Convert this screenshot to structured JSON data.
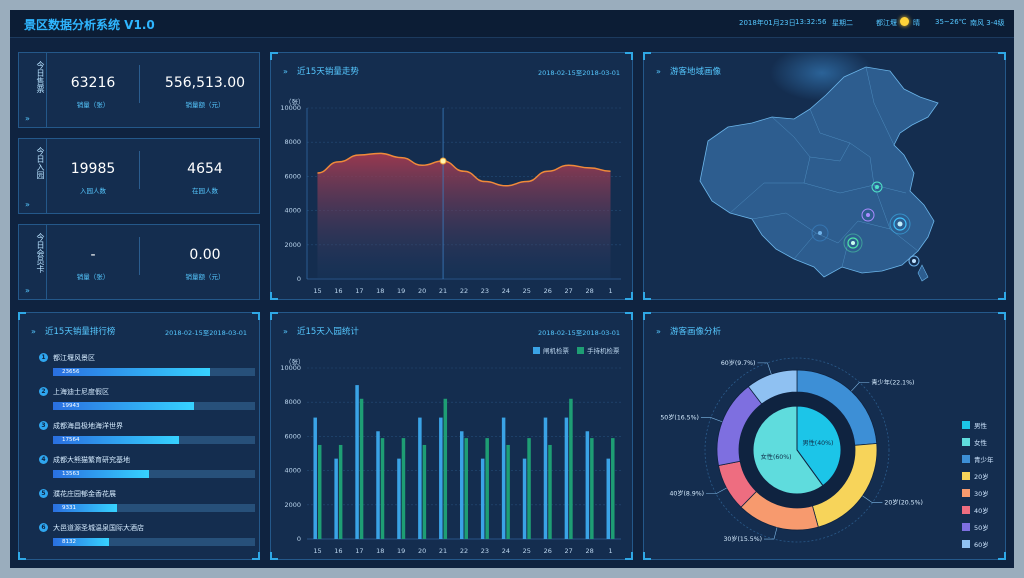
{
  "header": {
    "title": "景区数据分析系统  V1.0",
    "date": "2018年01月23日",
    "time": "13:32:56",
    "weekday": "星期二",
    "city": "都江堰",
    "weather": "晴",
    "temp": "35~26℃",
    "wind": "南风 3-4级"
  },
  "stats": [
    {
      "tab": "今日售票",
      "left_value": "63216",
      "left_label": "销量（张）",
      "right_value": "556,513.00",
      "right_label": "销量额（元）"
    },
    {
      "tab": "今日入园",
      "left_value": "19985",
      "left_label": "入园人数",
      "right_value": "4654",
      "right_label": "在园人数"
    },
    {
      "tab": "今日会员卡",
      "left_value": "-",
      "left_label": "销量（张）",
      "right_value": "0.00",
      "right_label": "销量额（元）"
    }
  ],
  "sales_trend": {
    "title": "近15天销量走势",
    "date_range": "2018-02-15至2018-03-01"
  },
  "region_map": {
    "title": "游客地域画像"
  },
  "ranking": {
    "title": "近15天销量排行榜",
    "date_range": "2018-02-15至2018-03-01",
    "items": [
      {
        "rank": "1",
        "name": "都江堰风景区",
        "value": "23656"
      },
      {
        "rank": "2",
        "name": "上海迪士尼度假区",
        "value": "19943"
      },
      {
        "rank": "3",
        "name": "成都海昌极地海洋世界",
        "value": "17564"
      },
      {
        "rank": "4",
        "name": "成都大熊猫繁育研究基地",
        "value": "13563"
      },
      {
        "rank": "5",
        "name": "濮花庄园郁金香花展",
        "value": "9331"
      },
      {
        "rank": "6",
        "name": "大邑道源圣城温泉国际大酒店",
        "value": "8132"
      }
    ]
  },
  "entry": {
    "title": "近15天入园统计",
    "date_range": "2018-02-15至2018-03-01"
  },
  "portrait": {
    "title": "游客画像分析"
  },
  "chart_data": [
    {
      "type": "area",
      "title": "近15天销量走势",
      "ylabel": "（张）",
      "ylim": [
        0,
        10000
      ],
      "yticks": [
        0,
        2000,
        4000,
        6000,
        8000,
        10000
      ],
      "x": [
        "15",
        "16",
        "17",
        "18",
        "19",
        "20",
        "21",
        "22",
        "23",
        "24",
        "25",
        "26",
        "27",
        "28",
        "1"
      ],
      "values": [
        6200,
        6850,
        7250,
        7350,
        7100,
        6650,
        6900,
        6300,
        5700,
        5450,
        5700,
        6300,
        6650,
        6500,
        6300
      ],
      "highlight_x": "21",
      "colors": {
        "line": "#f08a3a",
        "fill_top": "#a83a4f",
        "fill_bottom": "#1d3f68"
      }
    },
    {
      "type": "bar",
      "title": "近15天入园统计",
      "ylabel": "（张）",
      "ylim": [
        0,
        10000
      ],
      "yticks": [
        0,
        2000,
        4000,
        6000,
        8000,
        10000
      ],
      "categories": [
        "15",
        "16",
        "17",
        "18",
        "19",
        "20",
        "21",
        "22",
        "23",
        "24",
        "25",
        "26",
        "27",
        "28",
        "1"
      ],
      "series": [
        {
          "name": "闸机检票",
          "color": "#3aa3e6",
          "values": [
            7100,
            4700,
            9000,
            6300,
            4700,
            7100,
            7100,
            6300,
            4700,
            7100,
            4700,
            7100,
            7100,
            6300,
            4700
          ]
        },
        {
          "name": "手持机检票",
          "color": "#1e9e74",
          "values": [
            5500,
            5500,
            8200,
            5900,
            5900,
            5500,
            8200,
            5900,
            5900,
            5500,
            5900,
            5500,
            8200,
            5900,
            5900
          ]
        }
      ],
      "legend": "top-right"
    },
    {
      "type": "pie",
      "title": "游客画像分析",
      "inner": [
        {
          "label": "男性",
          "value": 40,
          "color": "#1cc5e8",
          "text": "男性(40%)"
        },
        {
          "label": "女性",
          "value": 60,
          "color": "#5fdcdd",
          "text": "女性(60%)"
        }
      ],
      "outer": [
        {
          "label": "青少年",
          "value": 22.1,
          "color": "#3d8fd6",
          "text": "青少年(22.1%)"
        },
        {
          "label": "20岁",
          "value": 20.5,
          "color": "#f7d45a",
          "text": "20岁(20.5%)"
        },
        {
          "label": "30岁",
          "value": 15.5,
          "color": "#f79a6e",
          "text": "30岁(15.5%)"
        },
        {
          "label": "40岁",
          "value": 8.9,
          "color": "#ee6d80",
          "text": "40岁(8.9%)"
        },
        {
          "label": "50岁",
          "value": 16.5,
          "color": "#7e6fe0",
          "text": "50岁(16.5%)"
        },
        {
          "label": "60岁",
          "value": 9.7,
          "color": "#8fc1f2",
          "text": "60岁(9.7%)"
        }
      ],
      "legend": [
        "男性",
        "女性",
        "青少年",
        "20岁",
        "30岁",
        "40岁",
        "50岁",
        "60岁"
      ],
      "legend_colors": [
        "#1cc5e8",
        "#5fdcdd",
        "#3d8fd6",
        "#f7d45a",
        "#f79a6e",
        "#ee6d80",
        "#7e6fe0",
        "#8fc1f2"
      ]
    }
  ]
}
